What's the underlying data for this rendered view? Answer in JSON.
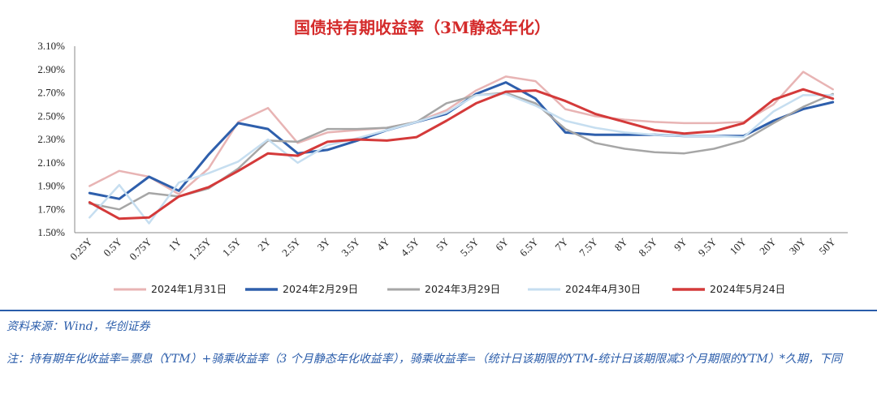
{
  "chart_data": {
    "type": "line",
    "title": "国债持有期收益率（3M静态年化）",
    "categories": [
      "0.25Y",
      "0.5Y",
      "0.75Y",
      "1Y",
      "1.25Y",
      "1.5Y",
      "2Y",
      "2.5Y",
      "3Y",
      "3.5Y",
      "4Y",
      "4.5Y",
      "5Y",
      "5.5Y",
      "6Y",
      "6.5Y",
      "7Y",
      "7.5Y",
      "8Y",
      "8.5Y",
      "9Y",
      "9.5Y",
      "10Y",
      "20Y",
      "30Y",
      "50Y"
    ],
    "y_ticks": [
      "1.50%",
      "1.70%",
      "1.90%",
      "2.10%",
      "2.30%",
      "2.50%",
      "2.70%",
      "2.90%",
      "3.10%"
    ],
    "ylim": [
      1.5,
      3.1
    ],
    "legend_position": "bottom",
    "series": [
      {
        "name": "2024年1月31日",
        "color": "#e8b4b4",
        "width": 2.5,
        "values": [
          1.9,
          2.03,
          1.98,
          1.83,
          2.05,
          2.45,
          2.57,
          2.27,
          2.36,
          2.38,
          2.4,
          2.45,
          2.55,
          2.72,
          2.84,
          2.8,
          2.56,
          2.5,
          2.47,
          2.45,
          2.44,
          2.44,
          2.45,
          2.6,
          2.88,
          2.73
        ]
      },
      {
        "name": "2024年2月29日",
        "color": "#2e5fac",
        "width": 3,
        "values": [
          1.84,
          1.79,
          1.98,
          1.86,
          2.17,
          2.44,
          2.39,
          2.18,
          2.21,
          2.29,
          2.38,
          2.45,
          2.52,
          2.69,
          2.79,
          2.65,
          2.36,
          2.34,
          2.34,
          2.34,
          2.33,
          2.33,
          2.33,
          2.46,
          2.56,
          2.62
        ]
      },
      {
        "name": "2024年3月29日",
        "color": "#a6a6a6",
        "width": 2.5,
        "values": [
          1.75,
          1.7,
          1.84,
          1.81,
          1.88,
          2.05,
          2.29,
          2.28,
          2.39,
          2.39,
          2.4,
          2.45,
          2.61,
          2.68,
          2.7,
          2.61,
          2.39,
          2.27,
          2.22,
          2.19,
          2.18,
          2.22,
          2.29,
          2.44,
          2.58,
          2.69
        ]
      },
      {
        "name": "2024年4月30日",
        "color": "#c6def0",
        "width": 2.5,
        "values": [
          1.63,
          1.91,
          1.58,
          1.93,
          2.01,
          2.11,
          2.3,
          2.1,
          2.25,
          2.31,
          2.38,
          2.45,
          2.53,
          2.68,
          2.69,
          2.59,
          2.46,
          2.4,
          2.36,
          2.34,
          2.33,
          2.33,
          2.32,
          2.54,
          2.68,
          2.68
        ]
      },
      {
        "name": "2024年5月24日",
        "color": "#d43a3a",
        "width": 3,
        "values": [
          1.76,
          1.62,
          1.63,
          1.81,
          1.89,
          2.03,
          2.18,
          2.16,
          2.28,
          2.3,
          2.29,
          2.32,
          2.46,
          2.61,
          2.71,
          2.72,
          2.63,
          2.52,
          2.45,
          2.38,
          2.35,
          2.37,
          2.44,
          2.64,
          2.73,
          2.65
        ]
      }
    ]
  },
  "footer": {
    "source": "资料来源：Wind，华创证券",
    "note": "注：持有期年化收益率=票息（YTM）+骑乘收益率（3 个月静态年化收益率），骑乘收益率=（统计日该期限的YTM-统计日该期限减3个月期限的YTM）*久期，下同"
  }
}
